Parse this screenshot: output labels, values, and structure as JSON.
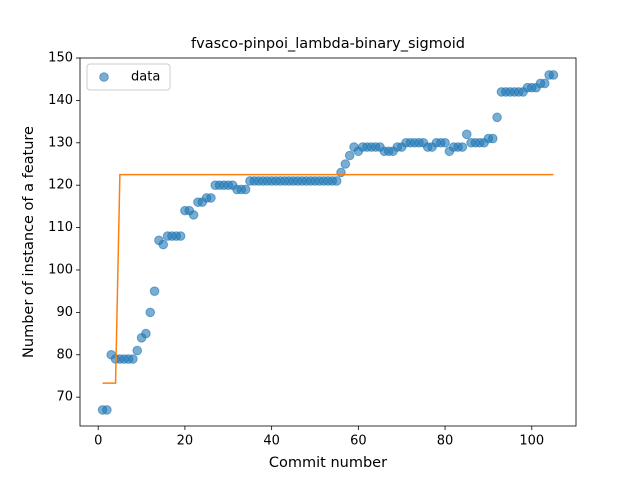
{
  "chart_data": {
    "type": "scatter",
    "title": "fvasco-pinpoi_lambda-binary_sigmoid",
    "xlabel": "Commit number",
    "ylabel": "Number of instance of a feature",
    "xlim": [
      -4.2,
      110.2
    ],
    "ylim": [
      63.2,
      150
    ],
    "xticks": [
      0,
      20,
      40,
      60,
      80,
      100
    ],
    "yticks": [
      70,
      80,
      90,
      100,
      110,
      120,
      130,
      140,
      150
    ],
    "legend": "upper left",
    "series": [
      {
        "name": "data",
        "type": "scatter",
        "color": "#1f77b4",
        "x": [
          1,
          2,
          3,
          4,
          5,
          6,
          7,
          8,
          9,
          10,
          11,
          12,
          13,
          14,
          15,
          16,
          17,
          18,
          19,
          20,
          21,
          22,
          23,
          24,
          25,
          26,
          27,
          28,
          29,
          30,
          31,
          32,
          33,
          34,
          35,
          36,
          37,
          38,
          39,
          40,
          41,
          42,
          43,
          44,
          45,
          46,
          47,
          48,
          49,
          50,
          51,
          52,
          53,
          54,
          55,
          56,
          57,
          58,
          59,
          60,
          61,
          62,
          63,
          64,
          65,
          66,
          67,
          68,
          69,
          70,
          71,
          72,
          73,
          74,
          75,
          76,
          77,
          78,
          79,
          80,
          81,
          82,
          83,
          84,
          85,
          86,
          87,
          88,
          89,
          90,
          91,
          92,
          93,
          94,
          95,
          96,
          97,
          98,
          99,
          100,
          101,
          102,
          103,
          104,
          105
        ],
        "values": [
          67,
          67,
          80,
          79,
          79,
          79,
          79,
          79,
          81,
          84,
          85,
          90,
          95,
          107,
          106,
          108,
          108,
          108,
          108,
          114,
          114,
          113,
          116,
          116,
          117,
          117,
          120,
          120,
          120,
          120,
          120,
          119,
          119,
          119,
          121,
          121,
          121,
          121,
          121,
          121,
          121,
          121,
          121,
          121,
          121,
          121,
          121,
          121,
          121,
          121,
          121,
          121,
          121,
          121,
          121,
          123,
          125,
          127,
          129,
          128,
          129,
          129,
          129,
          129,
          129,
          128,
          128,
          128,
          129,
          129,
          130,
          130,
          130,
          130,
          130,
          129,
          129,
          130,
          130,
          130,
          128,
          129,
          129,
          129,
          132,
          130,
          130,
          130,
          130,
          131,
          131,
          136,
          142,
          142,
          142,
          142,
          142,
          142,
          143,
          143,
          143,
          144,
          144,
          146,
          146
        ]
      },
      {
        "type": "line",
        "color": "#ff7f0e",
        "x": [
          1,
          4,
          5,
          105
        ],
        "values": [
          73.3,
          73.3,
          122.5,
          122.5
        ]
      }
    ]
  }
}
